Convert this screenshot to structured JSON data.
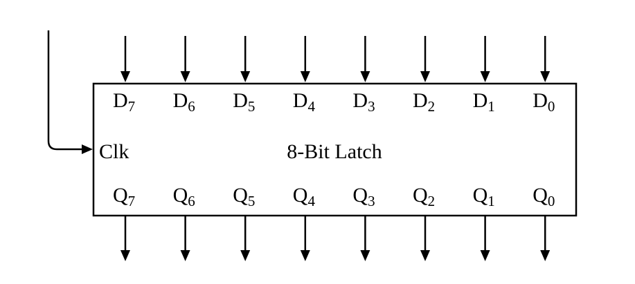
{
  "diagram": {
    "title": "8-Bit Latch",
    "clock_label": "Clk",
    "inputs": [
      {
        "letter": "D",
        "sub": "7"
      },
      {
        "letter": "D",
        "sub": "6"
      },
      {
        "letter": "D",
        "sub": "5"
      },
      {
        "letter": "D",
        "sub": "4"
      },
      {
        "letter": "D",
        "sub": "3"
      },
      {
        "letter": "D",
        "sub": "2"
      },
      {
        "letter": "D",
        "sub": "1"
      },
      {
        "letter": "D",
        "sub": "0"
      }
    ],
    "outputs": [
      {
        "letter": "Q",
        "sub": "7"
      },
      {
        "letter": "Q",
        "sub": "6"
      },
      {
        "letter": "Q",
        "sub": "5"
      },
      {
        "letter": "Q",
        "sub": "4"
      },
      {
        "letter": "Q",
        "sub": "3"
      },
      {
        "letter": "Q",
        "sub": "2"
      },
      {
        "letter": "Q",
        "sub": "1"
      },
      {
        "letter": "Q",
        "sub": "0"
      }
    ],
    "line_color": "#000000"
  }
}
